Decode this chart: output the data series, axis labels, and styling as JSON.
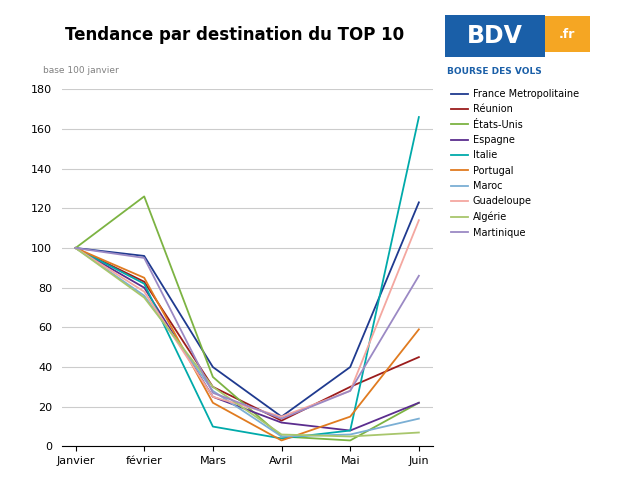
{
  "title": "Tendance par destination du TOP 10",
  "subtitle": "base 100 janvier",
  "months": [
    "Janvier",
    "février",
    "Mars",
    "Avril",
    "Mai",
    "Juin"
  ],
  "series": [
    {
      "name": "France Metropolitaine",
      "color": "#1F3A8F",
      "values": [
        100,
        96,
        40,
        15,
        40,
        123
      ]
    },
    {
      "name": "Réunion",
      "color": "#9B1C1C",
      "values": [
        100,
        83,
        30,
        13,
        30,
        45
      ]
    },
    {
      "name": "États-Unis",
      "color": "#7CB342",
      "values": [
        100,
        126,
        35,
        5,
        3,
        22
      ]
    },
    {
      "name": "Espagne",
      "color": "#5B2D8E",
      "values": [
        100,
        80,
        25,
        12,
        8,
        22
      ]
    },
    {
      "name": "Italie",
      "color": "#00AAAA",
      "values": [
        100,
        82,
        10,
        4,
        8,
        166
      ]
    },
    {
      "name": "Portugal",
      "color": "#E07B20",
      "values": [
        100,
        85,
        22,
        3,
        15,
        59
      ]
    },
    {
      "name": "Maroc",
      "color": "#7BAFD4",
      "values": [
        100,
        76,
        28,
        5,
        6,
        14
      ]
    },
    {
      "name": "Guadeloupe",
      "color": "#F4A7A0",
      "values": [
        100,
        78,
        25,
        15,
        28,
        114
      ]
    },
    {
      "name": "Algérie",
      "color": "#A8C66C",
      "values": [
        100,
        75,
        30,
        6,
        5,
        7
      ]
    },
    {
      "name": "Martinique",
      "color": "#9B89C4",
      "values": [
        100,
        95,
        27,
        14,
        28,
        86
      ]
    }
  ],
  "ylim": [
    0,
    180
  ],
  "yticks": [
    0,
    20,
    40,
    60,
    80,
    100,
    120,
    140,
    160,
    180
  ],
  "background_color": "#ffffff",
  "grid_color": "#cccccc",
  "title_fontsize": 12,
  "legend_fontsize": 7,
  "axis_fontsize": 8,
  "bdv_blue": "#1a5fa8",
  "bdv_orange": "#f5a623",
  "bdv_text": "BOURSE DES VOLS"
}
